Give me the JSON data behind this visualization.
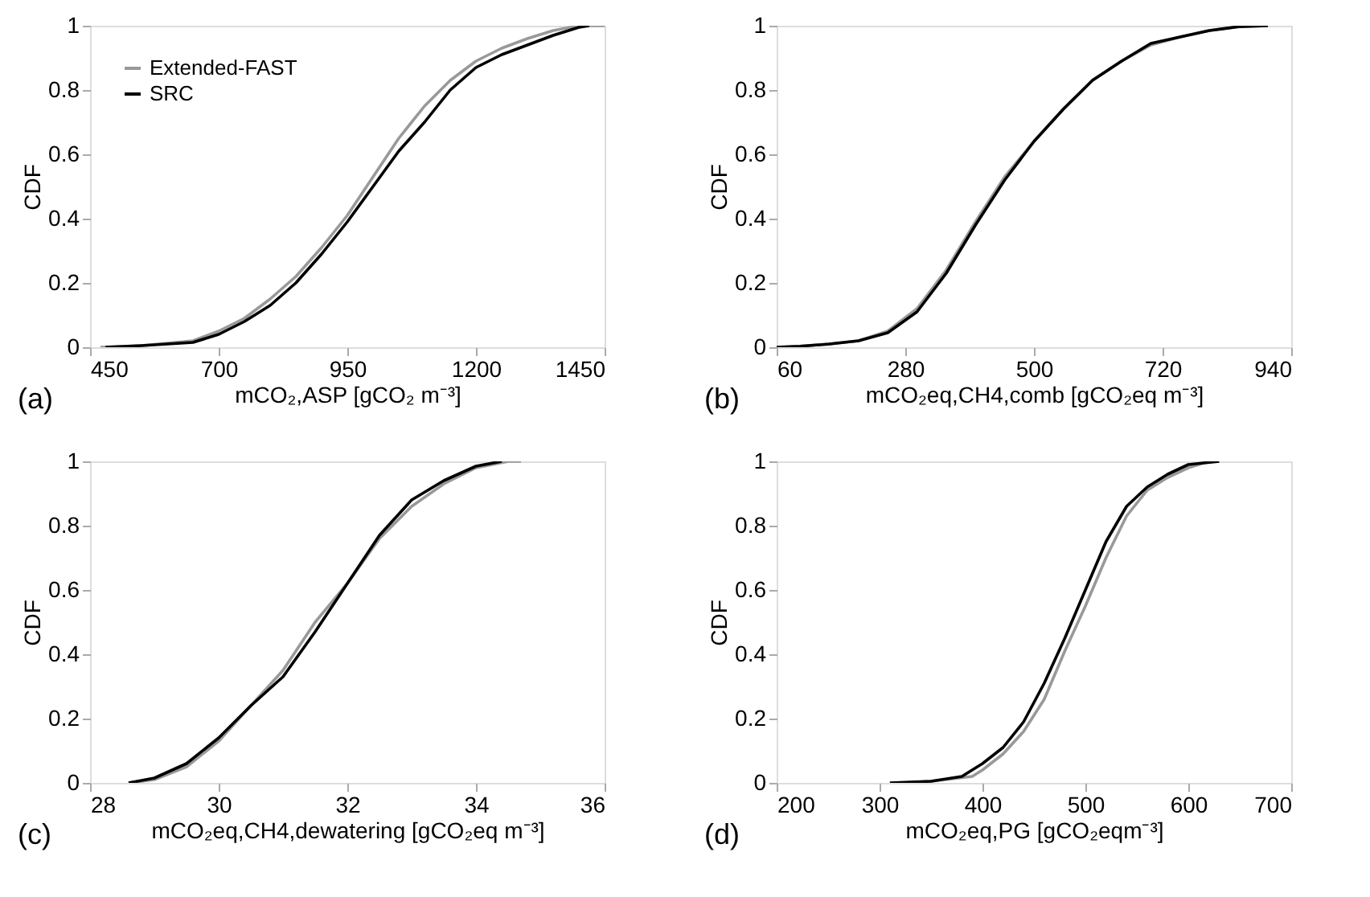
{
  "chart_data": [
    {
      "type": "line",
      "xlabel": "mCO₂,ASP [gCO₂ m⁻³]",
      "ylabel": "CDF",
      "annotations": [
        "(a)"
      ],
      "legend": "top left",
      "grid": false,
      "xlim": [
        450,
        1450
      ],
      "xticks": [
        450,
        700,
        950,
        1200,
        1450
      ],
      "ylim": [
        0,
        1
      ],
      "yticks": [
        0,
        0.2,
        0.4,
        0.6,
        0.8,
        1
      ],
      "series": [
        {
          "name": "Extended-FAST",
          "color": "#999999",
          "x": [
            470,
            550,
            650,
            700,
            750,
            800,
            850,
            900,
            950,
            1000,
            1050,
            1100,
            1150,
            1200,
            1250,
            1300,
            1350,
            1400,
            1450
          ],
          "values": [
            0,
            0.005,
            0.02,
            0.05,
            0.09,
            0.15,
            0.22,
            0.31,
            0.41,
            0.53,
            0.65,
            0.75,
            0.83,
            0.89,
            0.93,
            0.96,
            0.985,
            1,
            1
          ]
        },
        {
          "name": "SRC",
          "color": "#000000",
          "x": [
            480,
            550,
            650,
            700,
            750,
            800,
            850,
            900,
            950,
            1000,
            1050,
            1100,
            1150,
            1200,
            1250,
            1300,
            1350,
            1400,
            1420
          ],
          "values": [
            0,
            0.005,
            0.015,
            0.04,
            0.08,
            0.13,
            0.2,
            0.29,
            0.39,
            0.5,
            0.61,
            0.7,
            0.8,
            0.87,
            0.91,
            0.94,
            0.97,
            0.995,
            1
          ]
        }
      ]
    },
    {
      "type": "line",
      "xlabel": "mCO₂eq,CH4,comb [gCO₂eq m⁻³]",
      "ylabel": "CDF",
      "annotations": [
        "(b)"
      ],
      "grid": false,
      "xlim": [
        60,
        940
      ],
      "xticks": [
        60,
        280,
        500,
        720,
        940
      ],
      "ylim": [
        0,
        1
      ],
      "yticks": [
        0,
        0.2,
        0.4,
        0.6,
        0.8,
        1
      ],
      "series": [
        {
          "color": "#999999",
          "x": [
            60,
            100,
            150,
            200,
            250,
            300,
            350,
            400,
            450,
            500,
            550,
            600,
            650,
            700,
            750,
            800,
            850,
            900
          ],
          "values": [
            0,
            0.003,
            0.01,
            0.02,
            0.05,
            0.12,
            0.24,
            0.39,
            0.53,
            0.64,
            0.74,
            0.83,
            0.89,
            0.94,
            0.965,
            0.985,
            0.997,
            1
          ]
        },
        {
          "color": "#000000",
          "x": [
            60,
            100,
            150,
            200,
            250,
            300,
            350,
            400,
            450,
            500,
            550,
            600,
            650,
            700,
            750,
            800,
            850,
            900
          ],
          "values": [
            0,
            0.003,
            0.01,
            0.02,
            0.045,
            0.11,
            0.23,
            0.38,
            0.52,
            0.64,
            0.74,
            0.83,
            0.89,
            0.945,
            0.965,
            0.985,
            0.997,
            1
          ]
        }
      ]
    },
    {
      "type": "line",
      "xlabel": "mCO₂eq,CH4,dewatering [gCO₂eq m⁻³]",
      "ylabel": "CDF",
      "annotations": [
        "(c)"
      ],
      "grid": false,
      "xlim": [
        28,
        36
      ],
      "xticks": [
        28,
        30,
        32,
        34,
        36
      ],
      "ylim": [
        0,
        1
      ],
      "yticks": [
        0,
        0.2,
        0.4,
        0.6,
        0.8,
        1
      ],
      "series": [
        {
          "color": "#999999",
          "x": [
            28.6,
            29,
            29.5,
            30,
            30.5,
            31,
            31.5,
            32,
            32.5,
            33,
            33.5,
            34,
            34.5,
            34.7
          ],
          "values": [
            0,
            0.01,
            0.05,
            0.13,
            0.24,
            0.35,
            0.5,
            0.62,
            0.76,
            0.86,
            0.93,
            0.98,
            1,
            1
          ]
        },
        {
          "color": "#000000",
          "x": [
            28.6,
            29,
            29.5,
            30,
            30.5,
            31,
            31.5,
            32,
            32.5,
            33,
            33.5,
            34,
            34.4
          ],
          "values": [
            0,
            0.015,
            0.06,
            0.14,
            0.24,
            0.33,
            0.47,
            0.62,
            0.77,
            0.88,
            0.94,
            0.985,
            1
          ]
        }
      ]
    },
    {
      "type": "line",
      "xlabel": "mCO₂eq,PG [gCO₂eqm⁻³]",
      "ylabel": "CDF",
      "annotations": [
        "(d)"
      ],
      "grid": false,
      "xlim": [
        200,
        700
      ],
      "xticks": [
        200,
        300,
        400,
        500,
        600,
        700
      ],
      "ylim": [
        0,
        1
      ],
      "yticks": [
        0,
        0.2,
        0.4,
        0.6,
        0.8,
        1
      ],
      "series": [
        {
          "color": "#999999",
          "x": [
            320,
            350,
            390,
            400,
            420,
            440,
            460,
            480,
            500,
            520,
            540,
            560,
            580,
            600,
            620
          ],
          "values": [
            0,
            0.005,
            0.02,
            0.04,
            0.09,
            0.16,
            0.26,
            0.41,
            0.55,
            0.7,
            0.83,
            0.91,
            0.95,
            0.98,
            1
          ]
        },
        {
          "color": "#000000",
          "x": [
            310,
            350,
            380,
            400,
            420,
            440,
            460,
            480,
            500,
            520,
            540,
            560,
            580,
            600,
            630
          ],
          "values": [
            0,
            0.005,
            0.02,
            0.06,
            0.11,
            0.19,
            0.31,
            0.45,
            0.6,
            0.75,
            0.86,
            0.92,
            0.96,
            0.99,
            1
          ]
        }
      ]
    }
  ]
}
